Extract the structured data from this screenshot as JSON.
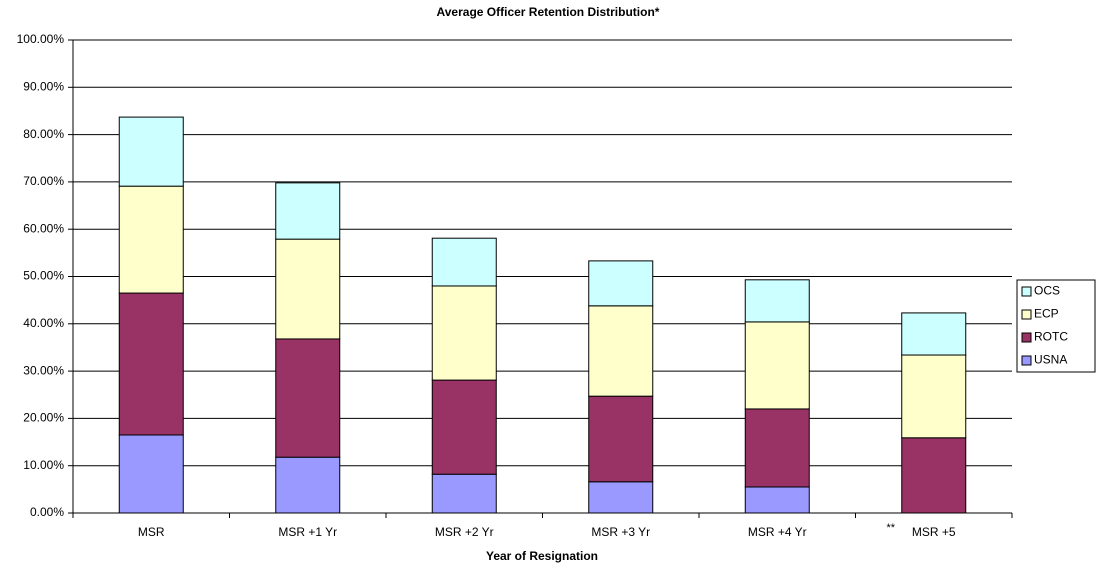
{
  "chart_data": {
    "type": "stacked_bar",
    "title": "Average Officer Retention Distribution*",
    "x_label": "Year of Resignation",
    "annotation": "**",
    "categories": [
      "MSR",
      "MSR +1 Yr",
      "MSR +2 Yr",
      "MSR +3 Yr",
      "MSR +4 Yr",
      "MSR +5"
    ],
    "series": [
      {
        "name": "USNA",
        "color": "#9999ff",
        "values": [
          16.5,
          11.8,
          8.2,
          6.6,
          5.5,
          0
        ]
      },
      {
        "name": "ROTC",
        "color": "#993366",
        "values": [
          30.0,
          25.0,
          19.9,
          18.1,
          16.5,
          15.9
        ]
      },
      {
        "name": "ECP",
        "color": "#ffffcc",
        "values": [
          22.6,
          21.1,
          19.9,
          19.1,
          18.4,
          17.5
        ]
      },
      {
        "name": "OCS",
        "color": "#ccffff",
        "values": [
          14.6,
          11.9,
          10.1,
          9.5,
          8.9,
          8.9
        ]
      }
    ],
    "ylim": [
      0,
      100
    ],
    "yticks": [
      {
        "value": 0,
        "label": "0.00%"
      },
      {
        "value": 10,
        "label": "10.00%"
      },
      {
        "value": 20,
        "label": "20.00%"
      },
      {
        "value": 30,
        "label": "30.00%"
      },
      {
        "value": 40,
        "label": "40.00%"
      },
      {
        "value": 50,
        "label": "50.00%"
      },
      {
        "value": 60,
        "label": "60.00%"
      },
      {
        "value": 70,
        "label": "70.00%"
      },
      {
        "value": 80,
        "label": "80.00%"
      },
      {
        "value": 90,
        "label": "90.00%"
      },
      {
        "value": 100,
        "label": "100.00%"
      }
    ],
    "grid": true,
    "legend": "right"
  }
}
